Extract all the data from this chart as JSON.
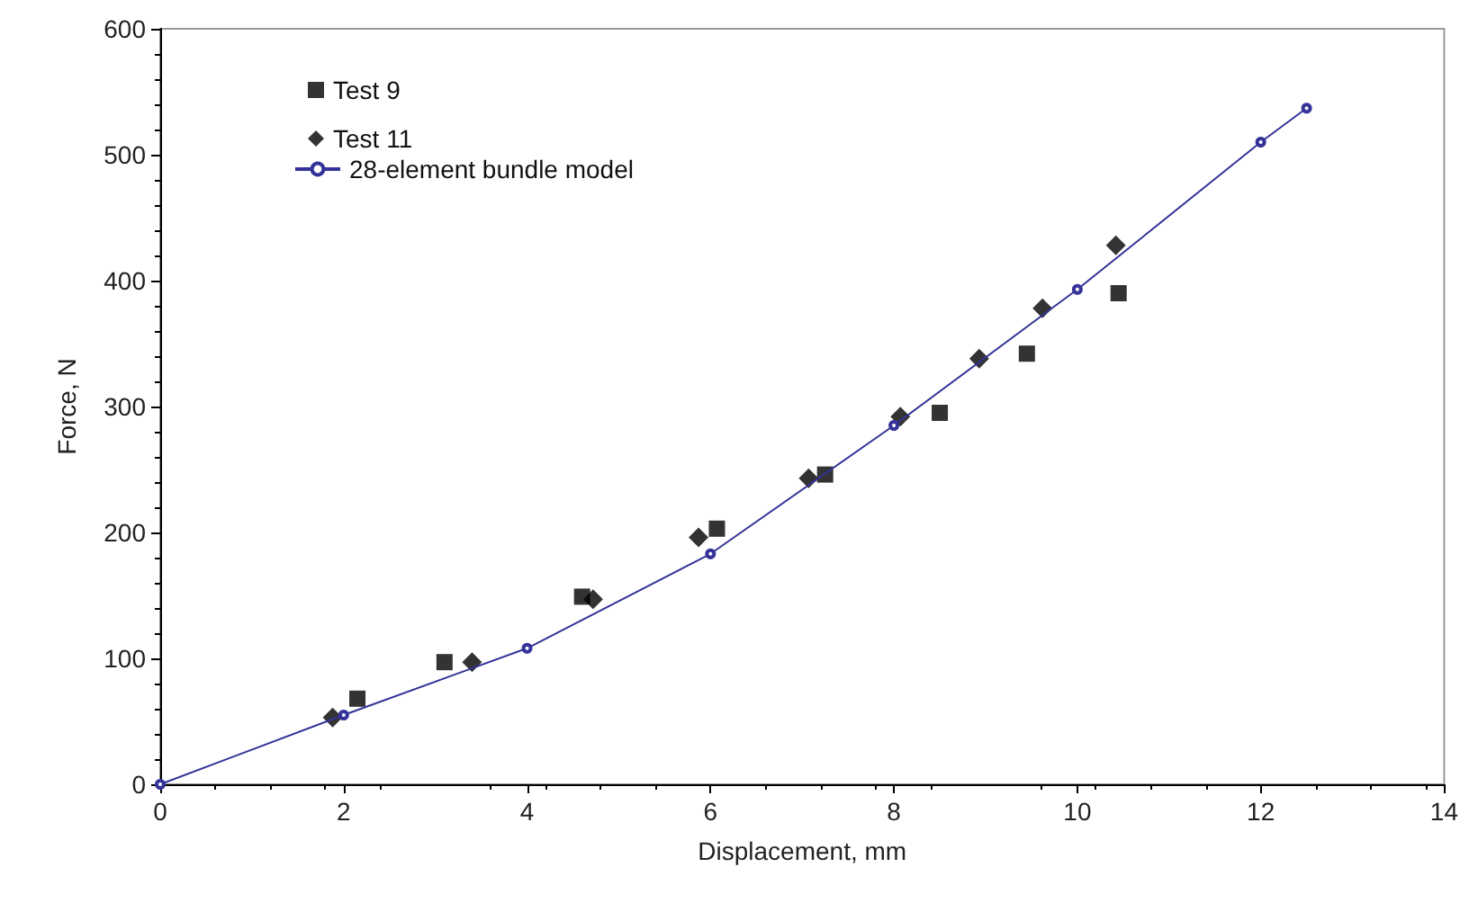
{
  "chart_data": {
    "type": "scatter",
    "xlabel": "Displacement, mm",
    "ylabel": "Force, N",
    "xlim": [
      0,
      14
    ],
    "xticks": [
      0,
      2,
      4,
      6,
      8,
      10,
      12,
      14
    ],
    "ylim": [
      0,
      600
    ],
    "yticks": [
      0,
      100,
      200,
      300,
      400,
      500,
      600
    ],
    "grid": false,
    "legend": "top left",
    "series": [
      {
        "name": "Test 9",
        "marker": "square",
        "color": "#000000",
        "x": [
          2.15,
          3.1,
          4.6,
          6.07,
          7.25,
          8.5,
          9.45,
          10.45
        ],
        "values": [
          68,
          97,
          149,
          203,
          246,
          295,
          342,
          390
        ]
      },
      {
        "name": "Test 11",
        "marker": "diamond",
        "color": "#000000",
        "x": [
          1.88,
          3.4,
          4.72,
          5.87,
          7.07,
          8.07,
          8.93,
          9.62,
          10.42
        ],
        "values": [
          53,
          97,
          147,
          196,
          243,
          292,
          338,
          378,
          428
        ]
      },
      {
        "name": "28-element bundle model",
        "type": "line",
        "marker": "circle",
        "color": "#333399",
        "x": [
          0,
          2,
          4,
          6,
          8,
          10,
          12,
          12.5
        ],
        "values": [
          0,
          55,
          108,
          183,
          285,
          393,
          510,
          537
        ]
      }
    ]
  }
}
